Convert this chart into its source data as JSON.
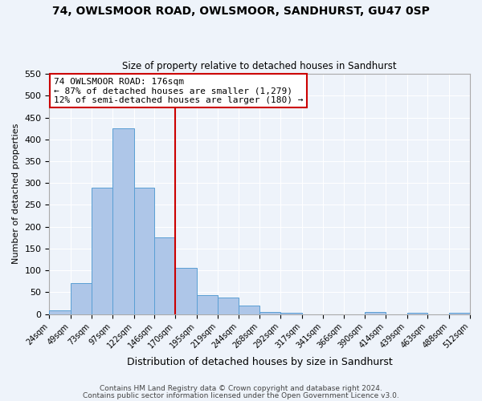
{
  "title": "74, OWLSMOOR ROAD, OWLSMOOR, SANDHURST, GU47 0SP",
  "subtitle": "Size of property relative to detached houses in Sandhurst",
  "xlabel": "Distribution of detached houses by size in Sandhurst",
  "ylabel": "Number of detached properties",
  "bin_edges": [
    24,
    49,
    73,
    97,
    122,
    146,
    170,
    195,
    219,
    244,
    268,
    292,
    317,
    341,
    366,
    390,
    414,
    439,
    463,
    488,
    512
  ],
  "bin_counts": [
    8,
    70,
    290,
    425,
    290,
    175,
    105,
    43,
    37,
    20,
    5,
    2,
    0,
    0,
    0,
    4,
    0,
    3,
    0,
    2
  ],
  "bar_color": "#aec6e8",
  "bar_edge_color": "#5a9fd4",
  "vline_x": 170,
  "vline_color": "#cc0000",
  "annotation_line1": "74 OWLSMOOR ROAD: 176sqm",
  "annotation_line2": "← 87% of detached houses are smaller (1,279)",
  "annotation_line3": "12% of semi-detached houses are larger (180) →",
  "annotation_box_color": "#ffffff",
  "annotation_box_edge_color": "#cc0000",
  "ylim": [
    0,
    550
  ],
  "yticks": [
    0,
    50,
    100,
    150,
    200,
    250,
    300,
    350,
    400,
    450,
    500,
    550
  ],
  "tick_labels": [
    "24sqm",
    "49sqm",
    "73sqm",
    "97sqm",
    "122sqm",
    "146sqm",
    "170sqm",
    "195sqm",
    "219sqm",
    "244sqm",
    "268sqm",
    "292sqm",
    "317sqm",
    "341sqm",
    "366sqm",
    "390sqm",
    "414sqm",
    "439sqm",
    "463sqm",
    "488sqm",
    "512sqm"
  ],
  "footer_line1": "Contains HM Land Registry data © Crown copyright and database right 2024.",
  "footer_line2": "Contains public sector information licensed under the Open Government Licence v3.0.",
  "background_color": "#eef3fa",
  "axes_background_color": "#eef3fa",
  "title_fontsize": 10,
  "subtitle_fontsize": 8.5,
  "ylabel_fontsize": 8,
  "xlabel_fontsize": 9,
  "tick_fontsize": 7,
  "ytick_fontsize": 8,
  "annotation_fontsize": 8,
  "footer_fontsize": 6.5
}
